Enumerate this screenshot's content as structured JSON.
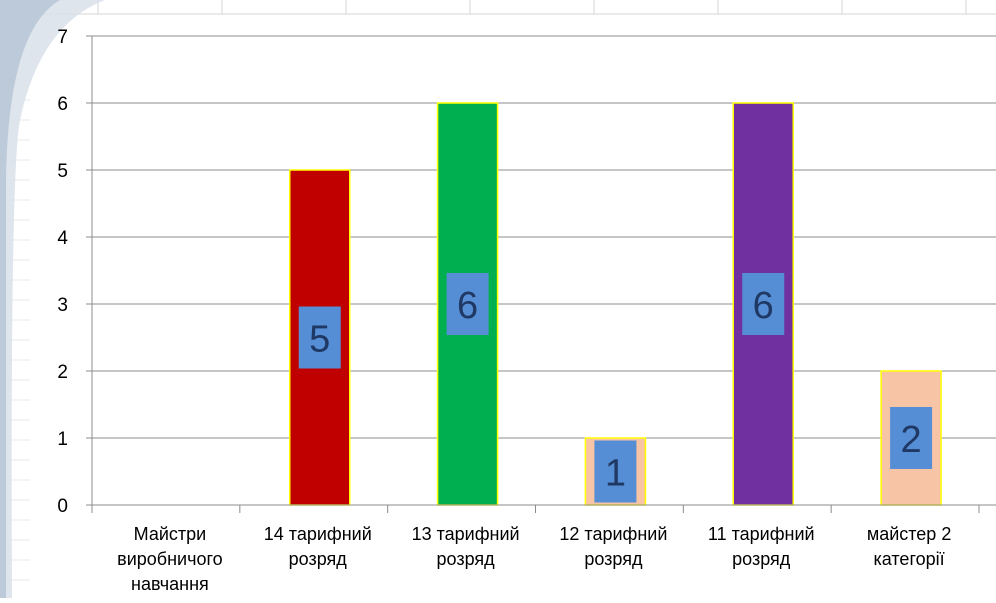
{
  "chart_data": {
    "type": "bar",
    "categories": [
      [
        "Майстри",
        "виробничого",
        "навчання"
      ],
      [
        "14 тарифний",
        "розряд"
      ],
      [
        "13 тарифний",
        "розряд"
      ],
      [
        "12 тарифний",
        "розряд"
      ],
      [
        "11 тарифний",
        "розряд"
      ],
      [
        "майстер 2",
        "категорії"
      ]
    ],
    "values": [
      0,
      5,
      6,
      1,
      6,
      2
    ],
    "data_labels": [
      "",
      "5",
      "6",
      "1",
      "6",
      "2"
    ],
    "bar_colors": [
      "#ffffff",
      "#c00000",
      "#00b050",
      "#f8c4a6",
      "#7030a0",
      "#f8c4a6"
    ],
    "bar_border_color": "#ffff00",
    "label_box_color": "#558ed5",
    "label_text_color": "#1f3864",
    "yticks": [
      "0",
      "1",
      "2",
      "3",
      "4",
      "5",
      "6",
      "7"
    ],
    "ylim": [
      0,
      7
    ],
    "grid": true,
    "title": "",
    "xlabel": "",
    "ylabel": ""
  }
}
